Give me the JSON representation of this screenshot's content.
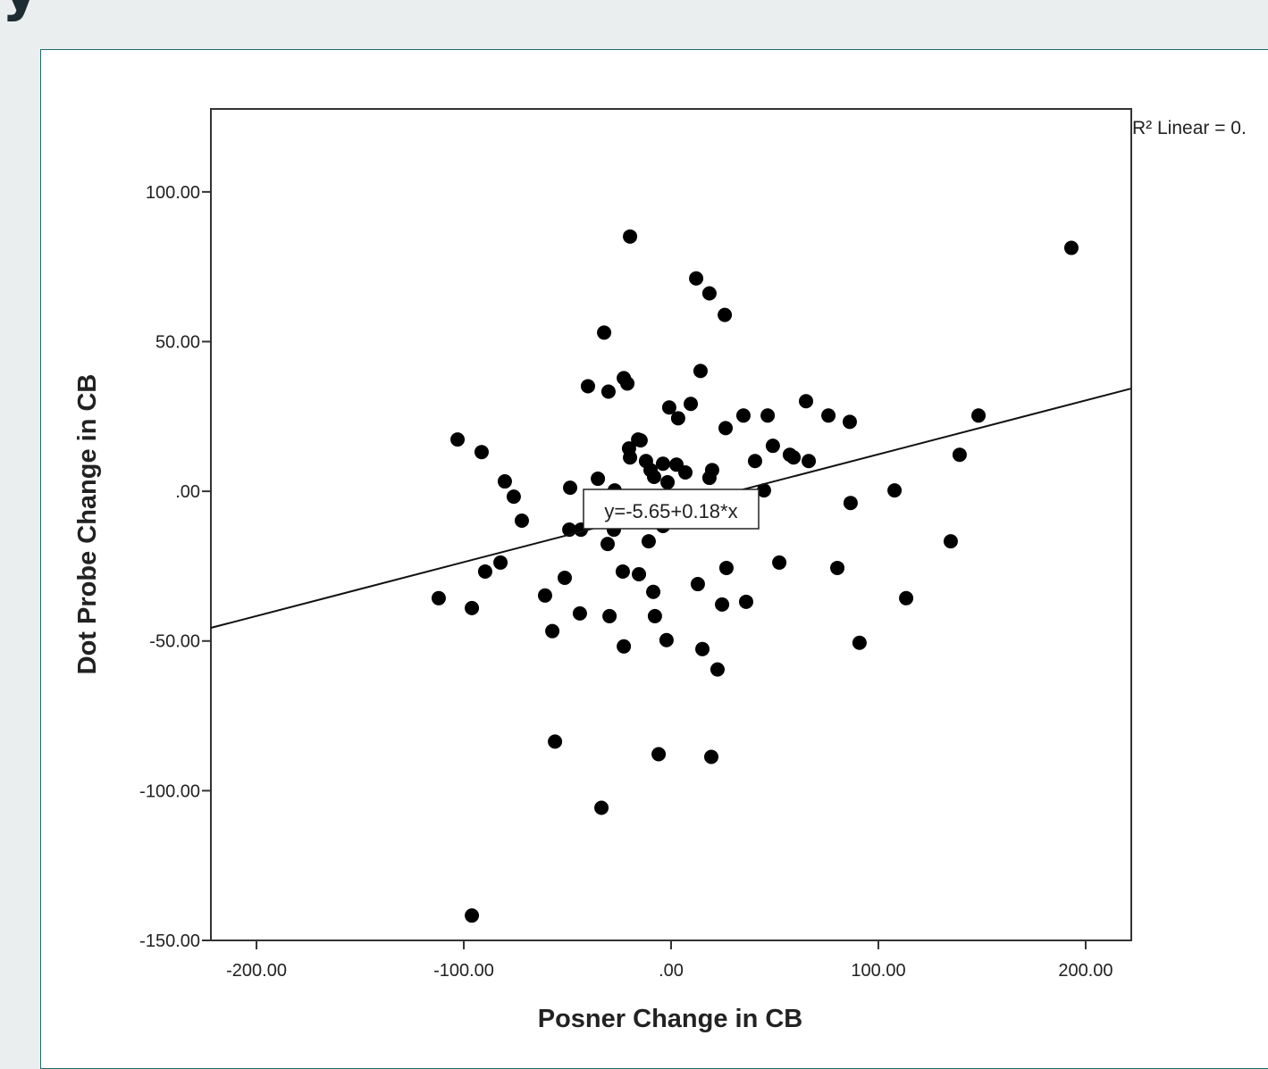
{
  "heading": "y",
  "chart_data": {
    "type": "scatter",
    "x_label": "Posner Change in CB",
    "y_label": "Dot Probe Change in CB",
    "fit_label": "y=-5.65+0.18*x",
    "r2_label": "R² Linear = 0.",
    "fit": {
      "intercept": -5.65,
      "slope": 0.18
    },
    "xlim": [
      -222,
      222
    ],
    "ylim": [
      -150,
      127.7
    ],
    "xticks": [
      {
        "value": -200,
        "label": "-200.00"
      },
      {
        "value": -100,
        "label": "-100.00"
      },
      {
        "value": 0,
        "label": ".00"
      },
      {
        "value": 100,
        "label": "100.00"
      },
      {
        "value": 200,
        "label": "200.00"
      }
    ],
    "yticks": [
      {
        "value": -150,
        "label": "-150.00"
      },
      {
        "value": -100,
        "label": "-100.00"
      },
      {
        "value": -50,
        "label": "-50.00"
      },
      {
        "value": 0,
        "label": ".00"
      },
      {
        "value": 50,
        "label": "50.00"
      },
      {
        "value": 100,
        "label": "100.00"
      }
    ],
    "color": "#000000",
    "series": [
      {
        "name": null,
        "color": "#000000",
        "x": [
          -19.8,
          193.1,
          12.1,
          18.5,
          25.9,
          -32.3,
          14.2,
          -22.8,
          -21.1,
          -40.1,
          -30.2,
          65.1,
          9.5,
          -0.9,
          3.4,
          34.9,
          46.6,
          75.9,
          86.2,
          148.3,
          26.3,
          -103.0,
          -91.4,
          -15.9,
          -14.7,
          -20.3,
          49.1,
          -19.8,
          57.3,
          59.1,
          66.4,
          139.2,
          40.5,
          -12.1,
          -3.9,
          2.6,
          -9.9,
          6.9,
          19.8,
          -8.2,
          18.5,
          -35.3,
          -80.2,
          -1.7,
          -48.7,
          -27.2,
          44.8,
          107.8,
          -75.9,
          86.6,
          -72.0,
          -3.9,
          -49.1,
          -43.5,
          -27.6,
          -30.6,
          -10.8,
          134.9,
          -82.3,
          -89.7,
          -23.3,
          -15.5,
          26.7,
          52.2,
          80.2,
          -51.3,
          12.9,
          -8.6,
          -60.8,
          -112.1,
          113.4,
          -96.1,
          24.6,
          36.2,
          -44.0,
          -29.7,
          -7.8,
          -57.3,
          -2.2,
          90.9,
          -22.8,
          15.1,
          22.4,
          -56.0,
          -6.0,
          19.4,
          -33.6,
          -96.1
        ],
        "values": [
          85.1,
          81.3,
          71.1,
          66.1,
          58.9,
          53.0,
          40.2,
          37.8,
          36.0,
          35.1,
          33.3,
          30.1,
          29.2,
          28.0,
          24.4,
          25.3,
          25.3,
          25.3,
          23.2,
          25.3,
          21.1,
          17.3,
          13.1,
          17.3,
          17.0,
          14.3,
          15.2,
          11.3,
          12.2,
          11.3,
          10.1,
          12.2,
          10.1,
          10.1,
          9.2,
          8.9,
          7.1,
          6.3,
          7.1,
          4.8,
          4.5,
          4.2,
          3.3,
          3.0,
          1.2,
          0.3,
          0.3,
          0.3,
          -1.8,
          -3.9,
          -9.8,
          -11.6,
          -12.8,
          -12.8,
          -12.8,
          -17.6,
          -16.7,
          -16.7,
          -23.8,
          -26.8,
          -26.8,
          -27.7,
          -25.6,
          -23.8,
          -25.6,
          -28.9,
          -31.0,
          -33.6,
          -34.8,
          -35.7,
          -35.7,
          -39.0,
          -37.8,
          -36.9,
          -40.8,
          -41.7,
          -41.7,
          -46.7,
          -49.7,
          -50.6,
          -51.8,
          -52.7,
          -59.5,
          -83.6,
          -87.8,
          -88.7,
          -105.7,
          -141.7
        ]
      }
    ]
  }
}
